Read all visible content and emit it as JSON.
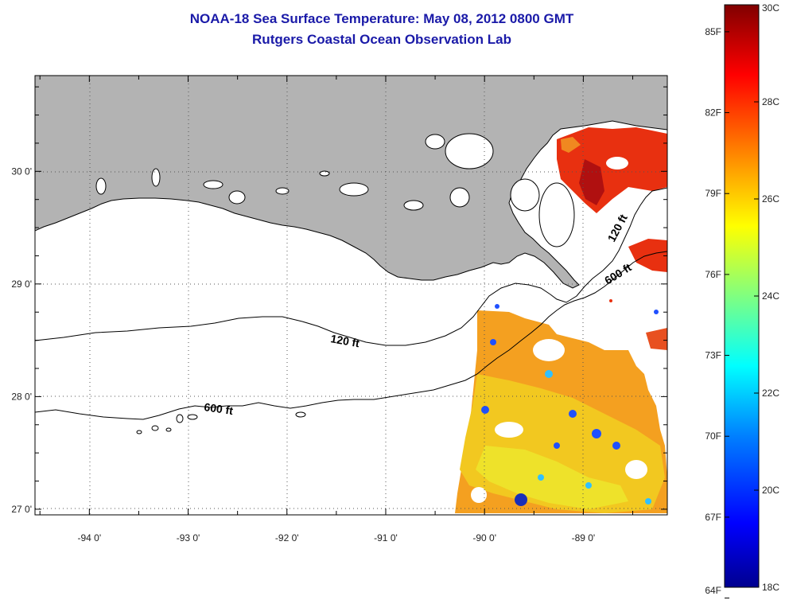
{
  "title_line1": "NOAA-18 Sea Surface Temperature:  May 08, 2012 0800 GMT",
  "title_line2": "Rutgers Coastal Ocean Observation Lab",
  "map": {
    "lon_ticks": [
      {
        "value": -94,
        "label": "-94 0'"
      },
      {
        "value": -93,
        "label": "-93 0'"
      },
      {
        "value": -92,
        "label": "-92 0'"
      },
      {
        "value": -91,
        "label": "-91 0'"
      },
      {
        "value": -90,
        "label": "-90 0'"
      },
      {
        "value": -89,
        "label": "-89 0'"
      }
    ],
    "lat_ticks": [
      {
        "value": 30,
        "label": "30 0'"
      },
      {
        "value": 29,
        "label": "29 0'"
      },
      {
        "value": 28,
        "label": "28 0'"
      },
      {
        "value": 27,
        "label": "27 0'"
      }
    ],
    "lon_range": [
      -94.55,
      -88.15
    ],
    "lat_range": [
      26.95,
      30.85
    ],
    "land_color": "#b3b3b3",
    "grid": "dotted",
    "contour_labels": [
      {
        "id": "label-120-west",
        "text": "120 ft"
      },
      {
        "id": "label-600-west",
        "text": "600 ft"
      },
      {
        "id": "label-120-east",
        "text": "120 ft"
      },
      {
        "id": "label-600-east",
        "text": "600 ft"
      }
    ]
  },
  "colorbar": {
    "min_c": 18,
    "max_c": 30,
    "celsius_labels": [
      "30C",
      "28C",
      "26C",
      "24C",
      "22C",
      "20C",
      "18C"
    ],
    "fahrenheit_labels": [
      "85F",
      "82F",
      "79F",
      "76F",
      "73F",
      "70F",
      "67F",
      "64F"
    ],
    "colors": [
      "#00008f",
      "#0000ff",
      "#0080ff",
      "#00ffff",
      "#80ff80",
      "#ffff00",
      "#ff8000",
      "#ff0000",
      "#800000"
    ]
  }
}
